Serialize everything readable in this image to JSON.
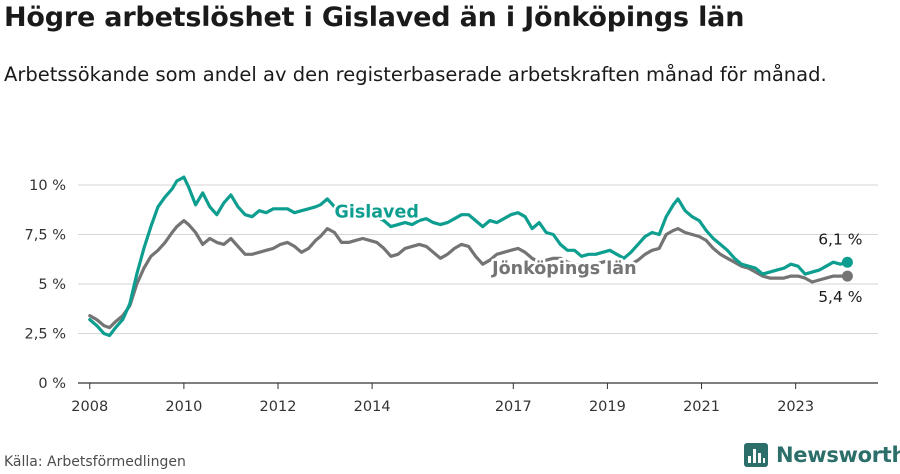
{
  "header": {
    "title": "Högre arbetslöshet i Gislaved än i Jönköpings län",
    "subtitle": "Arbetssökande som andel av den registerbaserade arbetskraften månad för månad."
  },
  "footer": {
    "source": "Källa: Arbetsförmedlingen",
    "brand_name": "Newsworthy",
    "brand_icon": "bar-chart-icon"
  },
  "colors": {
    "gislaved": "#0e9e90",
    "jonkoping": "#747474",
    "grid": "#d6d6d6",
    "axis": "#333333"
  },
  "chart_data": {
    "type": "line",
    "title": "Högre arbetslöshet i Gislaved än i Jönköpings län",
    "xlabel": "",
    "ylabel": "",
    "xlim": [
      2007.75,
      2024.75
    ],
    "ylim": [
      0,
      10
    ],
    "grid": true,
    "y_ticks": [
      0,
      2.5,
      5,
      7.5,
      10
    ],
    "y_tick_labels": [
      "0 %",
      "2,5 %",
      "5 %",
      "7,5 %",
      "10 %"
    ],
    "x_ticks": [
      2008,
      2010,
      2012,
      2014,
      2017,
      2019,
      2021,
      2023
    ],
    "x_tick_labels": [
      "2008",
      "2010",
      "2012",
      "2014",
      "2017",
      "2019",
      "2021",
      "2023"
    ],
    "series": [
      {
        "name": "Gislaved",
        "end_label": "6,1 %",
        "x": [
          2008.0,
          2008.15,
          2008.3,
          2008.42,
          2008.55,
          2008.7,
          2008.85,
          2009.0,
          2009.15,
          2009.3,
          2009.45,
          2009.6,
          2009.75,
          2009.85,
          2010.0,
          2010.1,
          2010.25,
          2010.4,
          2010.55,
          2010.7,
          2010.85,
          2011.0,
          2011.15,
          2011.3,
          2011.45,
          2011.6,
          2011.75,
          2011.9,
          2012.05,
          2012.2,
          2012.35,
          2012.5,
          2012.65,
          2012.8,
          2012.9,
          2013.05,
          2013.2,
          2013.35,
          2013.5,
          2013.65,
          2013.8,
          2013.95,
          2014.1,
          2014.25,
          2014.4,
          2014.55,
          2014.7,
          2014.85,
          2015.0,
          2015.15,
          2015.3,
          2015.45,
          2015.6,
          2015.75,
          2015.9,
          2016.05,
          2016.2,
          2016.35,
          2016.5,
          2016.65,
          2016.8,
          2016.95,
          2017.1,
          2017.25,
          2017.4,
          2017.55,
          2017.7,
          2017.85,
          2018.0,
          2018.15,
          2018.3,
          2018.45,
          2018.6,
          2018.75,
          2018.9,
          2019.05,
          2019.2,
          2019.35,
          2019.5,
          2019.65,
          2019.8,
          2019.95,
          2020.1,
          2020.25,
          2020.4,
          2020.5,
          2020.65,
          2020.8,
          2020.95,
          2021.1,
          2021.25,
          2021.4,
          2021.55,
          2021.7,
          2021.85,
          2022.0,
          2022.15,
          2022.3,
          2022.45,
          2022.6,
          2022.75,
          2022.9,
          2023.05,
          2023.2,
          2023.35,
          2023.5,
          2023.65,
          2023.8,
          2023.95,
          2024.1
        ],
        "values": [
          3.2,
          2.9,
          2.5,
          2.4,
          2.8,
          3.2,
          4.0,
          5.5,
          6.8,
          7.9,
          8.9,
          9.4,
          9.8,
          10.2,
          10.4,
          9.9,
          9.0,
          9.6,
          8.9,
          8.5,
          9.1,
          9.5,
          8.9,
          8.5,
          8.4,
          8.7,
          8.6,
          8.8,
          8.8,
          8.8,
          8.6,
          8.7,
          8.8,
          8.9,
          9.0,
          9.3,
          8.9,
          8.8,
          8.7,
          8.6,
          8.6,
          8.5,
          8.4,
          8.2,
          7.9,
          8.0,
          8.1,
          8.0,
          8.2,
          8.3,
          8.1,
          8.0,
          8.1,
          8.3,
          8.5,
          8.5,
          8.2,
          7.9,
          8.2,
          8.1,
          8.3,
          8.5,
          8.6,
          8.4,
          7.8,
          8.1,
          7.6,
          7.5,
          7.0,
          6.7,
          6.7,
          6.4,
          6.5,
          6.5,
          6.6,
          6.7,
          6.5,
          6.3,
          6.6,
          7.0,
          7.4,
          7.6,
          7.5,
          8.4,
          9.0,
          9.3,
          8.7,
          8.4,
          8.2,
          7.7,
          7.3,
          7.0,
          6.7,
          6.3,
          6.0,
          5.9,
          5.8,
          5.5,
          5.6,
          5.7,
          5.8,
          6.0,
          5.9,
          5.5,
          5.6,
          5.7,
          5.9,
          6.1,
          6.0,
          6.1
        ]
      },
      {
        "name": "Jönköpings län",
        "end_label": "5,4 %",
        "x": [
          2008.0,
          2008.15,
          2008.3,
          2008.42,
          2008.55,
          2008.7,
          2008.85,
          2009.0,
          2009.15,
          2009.3,
          2009.45,
          2009.6,
          2009.75,
          2009.85,
          2010.0,
          2010.1,
          2010.25,
          2010.4,
          2010.55,
          2010.7,
          2010.85,
          2011.0,
          2011.15,
          2011.3,
          2011.45,
          2011.6,
          2011.75,
          2011.9,
          2012.05,
          2012.2,
          2012.35,
          2012.5,
          2012.65,
          2012.8,
          2012.9,
          2013.05,
          2013.2,
          2013.35,
          2013.5,
          2013.65,
          2013.8,
          2013.95,
          2014.1,
          2014.25,
          2014.4,
          2014.55,
          2014.7,
          2014.85,
          2015.0,
          2015.15,
          2015.3,
          2015.45,
          2015.6,
          2015.75,
          2015.9,
          2016.05,
          2016.2,
          2016.35,
          2016.5,
          2016.65,
          2016.8,
          2016.95,
          2017.1,
          2017.25,
          2017.4,
          2017.55,
          2017.7,
          2017.85,
          2018.0,
          2018.15,
          2018.3,
          2018.45,
          2018.6,
          2018.75,
          2018.9,
          2019.05,
          2019.2,
          2019.35,
          2019.5,
          2019.65,
          2019.8,
          2019.95,
          2020.1,
          2020.25,
          2020.4,
          2020.5,
          2020.65,
          2020.8,
          2020.95,
          2021.1,
          2021.25,
          2021.4,
          2021.55,
          2021.7,
          2021.85,
          2022.0,
          2022.15,
          2022.3,
          2022.45,
          2022.6,
          2022.75,
          2022.9,
          2023.05,
          2023.2,
          2023.35,
          2023.5,
          2023.65,
          2023.8,
          2023.95,
          2024.1
        ],
        "values": [
          3.4,
          3.2,
          2.9,
          2.8,
          3.1,
          3.4,
          3.9,
          5.0,
          5.8,
          6.4,
          6.7,
          7.1,
          7.6,
          7.9,
          8.2,
          8.0,
          7.6,
          7.0,
          7.3,
          7.1,
          7.0,
          7.3,
          6.9,
          6.5,
          6.5,
          6.6,
          6.7,
          6.8,
          7.0,
          7.1,
          6.9,
          6.6,
          6.8,
          7.2,
          7.4,
          7.8,
          7.6,
          7.1,
          7.1,
          7.2,
          7.3,
          7.2,
          7.1,
          6.8,
          6.4,
          6.5,
          6.8,
          6.9,
          7.0,
          6.9,
          6.6,
          6.3,
          6.5,
          6.8,
          7.0,
          6.9,
          6.4,
          6.0,
          6.2,
          6.5,
          6.6,
          6.7,
          6.8,
          6.6,
          6.3,
          6.1,
          6.2,
          6.3,
          6.3,
          6.1,
          6.0,
          5.9,
          6.0,
          6.0,
          6.1,
          6.2,
          6.0,
          5.9,
          6.0,
          6.2,
          6.5,
          6.7,
          6.8,
          7.5,
          7.7,
          7.8,
          7.6,
          7.5,
          7.4,
          7.2,
          6.8,
          6.5,
          6.3,
          6.1,
          5.9,
          5.8,
          5.6,
          5.4,
          5.3,
          5.3,
          5.3,
          5.4,
          5.4,
          5.3,
          5.1,
          5.2,
          5.3,
          5.4,
          5.4,
          5.4
        ]
      }
    ]
  }
}
